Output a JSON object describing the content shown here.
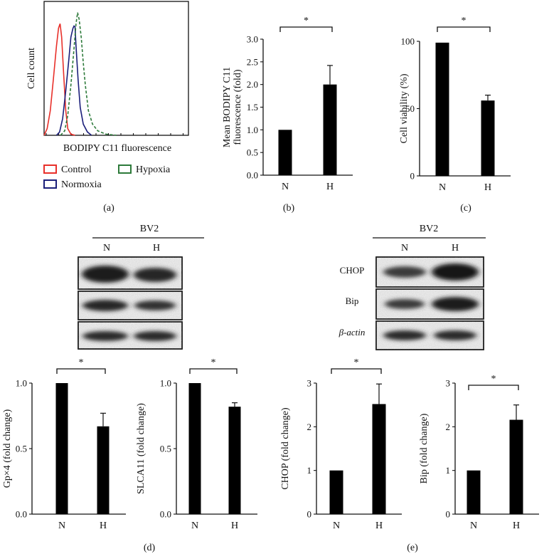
{
  "chart_data": [
    {
      "panel": "(a)",
      "type": "line",
      "xlabel": "BODIPY C11 fluorescence",
      "ylabel": "Cell count",
      "legend": [
        {
          "name": "Control",
          "color": "#e8302a"
        },
        {
          "name": "Normoxia",
          "color": "#1b1f7a"
        },
        {
          "name": "Hypoxia",
          "color": "#2d7a3a"
        }
      ],
      "legend_placement": "bottom",
      "series": [
        {
          "name": "Control",
          "color": "#e8302a",
          "dash": "solid",
          "x": [
            0,
            3,
            6,
            9,
            12,
            14,
            15.5,
            17,
            19,
            21,
            23,
            26,
            30
          ],
          "y": [
            0,
            6,
            22,
            50,
            80,
            96,
            100,
            88,
            55,
            22,
            6,
            1,
            0
          ]
        },
        {
          "name": "Normoxia",
          "color": "#1b1f7a",
          "dash": "solid",
          "x": [
            12,
            15,
            18,
            21,
            24,
            26,
            28,
            29,
            30,
            31,
            33,
            35,
            38,
            42,
            46
          ],
          "y": [
            0,
            3,
            15,
            40,
            68,
            88,
            96,
            98,
            97,
            80,
            50,
            25,
            10,
            3,
            0
          ]
        },
        {
          "name": "Hypoxia",
          "color": "#2d7a3a",
          "dash": "dashed",
          "x": [
            16,
            20,
            23,
            26,
            29,
            31,
            32.5,
            34,
            36,
            38,
            40,
            43,
            47,
            52,
            60,
            70
          ],
          "y": [
            0,
            4,
            18,
            45,
            78,
            100,
            110,
            104,
            88,
            65,
            45,
            22,
            10,
            4,
            1,
            0
          ]
        }
      ],
      "xlim": [
        0,
        140
      ],
      "ylim": [
        0,
        120
      ]
    },
    {
      "panel": "(b)",
      "type": "bar",
      "categories": [
        "N",
        "H"
      ],
      "values": [
        1.0,
        2.0
      ],
      "errors": [
        0,
        0.42
      ],
      "ylabel": "Mean BODIPY C11 fluorescence (fold)",
      "ylabel_lines": [
        "Mean BODIPY C11",
        "fluorescence (fold)"
      ],
      "ylim": [
        0,
        3.0
      ],
      "yticks": [
        "0.0",
        "0.5",
        "1.0",
        "1.5",
        "2.0",
        "2.5",
        "3.0"
      ],
      "significance": "*"
    },
    {
      "panel": "(c)",
      "type": "bar",
      "categories": [
        "N",
        "H"
      ],
      "values": [
        99,
        56
      ],
      "errors": [
        0,
        4
      ],
      "ylabel": "Cell viability (%)",
      "ylim": [
        0,
        100
      ],
      "yticks": [
        "0",
        "50",
        "100"
      ],
      "significance": "*"
    },
    {
      "panel": "(d)",
      "type": "bar",
      "categories": [
        "N",
        "H"
      ],
      "values": [
        1.0,
        0.67
      ],
      "errors": [
        0,
        0.1
      ],
      "ylabel": "Gp×4 (fold change)",
      "ylim": [
        0,
        1.0
      ],
      "yticks": [
        "0.0",
        "0.5",
        "1.0"
      ],
      "significance": "*"
    },
    {
      "panel": "(d)",
      "type": "bar",
      "categories": [
        "N",
        "H"
      ],
      "values": [
        1.0,
        0.82
      ],
      "errors": [
        0,
        0.03
      ],
      "ylabel": "SLCA11 (fold change)",
      "ylim": [
        0,
        1.0
      ],
      "yticks": [
        "0.0",
        "0.5",
        "1.0"
      ],
      "significance": "*"
    },
    {
      "panel": "(e)",
      "type": "bar",
      "categories": [
        "N",
        "H"
      ],
      "values": [
        1.0,
        2.52
      ],
      "errors": [
        0,
        0.46
      ],
      "ylabel": "CHOP (fold change)",
      "ylim": [
        0,
        3
      ],
      "yticks": [
        "0",
        "1",
        "2",
        "3"
      ],
      "significance": "*"
    },
    {
      "panel": "(e)",
      "type": "bar",
      "categories": [
        "N",
        "H"
      ],
      "values": [
        1.0,
        2.16
      ],
      "errors": [
        0,
        0.34
      ],
      "ylabel": "Bip (fold change)",
      "ylim": [
        0,
        3
      ],
      "yticks": [
        "0",
        "1",
        "2",
        "3"
      ],
      "significance": "*"
    }
  ],
  "blots": {
    "left": {
      "cell_line": "BV2",
      "lanes": [
        "N",
        "H"
      ],
      "row_labels": [
        "",
        "",
        ""
      ]
    },
    "right": {
      "cell_line": "BV2",
      "lanes": [
        "N",
        "H"
      ],
      "row_labels": [
        "CHOP",
        "Bip",
        "β-actin"
      ]
    }
  },
  "panel_letters": [
    "(a)",
    "(b)",
    "(c)",
    "(d)",
    "(e)"
  ]
}
